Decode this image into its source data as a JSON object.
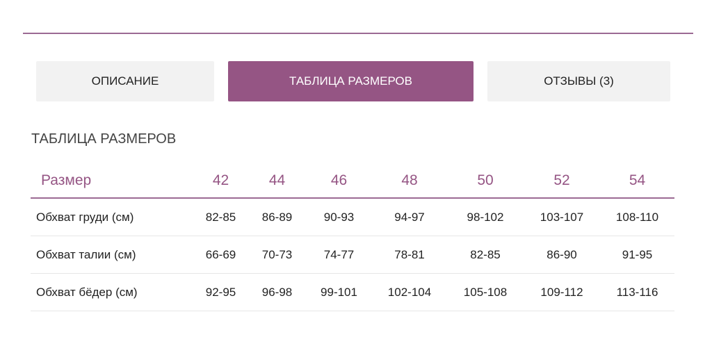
{
  "tabs": [
    {
      "label": "ОПИСАНИЕ",
      "active": false
    },
    {
      "label": "ТАБЛИЦА РАЗМЕРОВ",
      "active": true
    },
    {
      "label": "ОТЗЫВЫ (3)",
      "active": false
    }
  ],
  "accent_color": "#955584",
  "section_title": "ТАБЛИЦА РАЗМЕРОВ",
  "table": {
    "headers": [
      "Размер",
      "42",
      "44",
      "46",
      "48",
      "50",
      "52",
      "54"
    ],
    "rows": [
      [
        "Обхват груди (см)",
        "82-85",
        "86-89",
        "90-93",
        "94-97",
        "98-102",
        "103-107",
        "108-110"
      ],
      [
        "Обхват талии (см)",
        "66-69",
        "70-73",
        "74-77",
        "78-81",
        "82-85",
        "86-90",
        "91-95"
      ],
      [
        "Обхват бёдер (см)",
        "92-95",
        "96-98",
        "99-101",
        "102-104",
        "105-108",
        "109-112",
        "113-116"
      ]
    ]
  }
}
